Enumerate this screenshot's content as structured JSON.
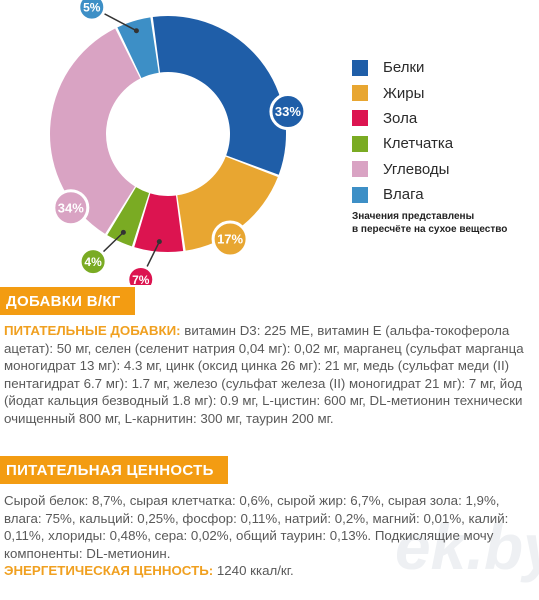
{
  "chart_data": {
    "type": "pie",
    "categories": [
      "Белки",
      "Жиры",
      "Зола",
      "Клетчатка",
      "Углеводы",
      "Влага"
    ],
    "values": [
      33,
      17,
      7,
      4,
      34,
      5
    ],
    "value_labels": [
      "33%",
      "17%",
      "7%",
      "4%",
      "34%",
      "5%"
    ],
    "colors": [
      "#1f5ea8",
      "#e8a631",
      "#dc1450",
      "#7aab23",
      "#d9a3c3",
      "#3d8fc6"
    ],
    "legend_position": "right"
  },
  "legend_note": {
    "line1": "Значения представлены",
    "line2": "в пересчёте на сухое вещество"
  },
  "watermark": "ek.by",
  "supplements": {
    "heading": "ДОБАВКИ В/КГ",
    "label": "ПИТАТЕЛЬНЫЕ ДОБАВКИ:",
    "text": " витамин D3: 225 ME, витамин Е (альфа-токоферола ацетат): 50 мг, селен (селенит натрия 0,04 мг): 0,02 мг, марганец (сульфат марганца моногидрат 13 мг): 4.3 мг, цинк (оксид цинка 26 мг): 21 мг, медь (сульфат меди (II) пентагидрат 6.7 мг): 1.7 мг, железо (сульфат железа (II) моногидрат 21 мг): 7 мг, йод (йодат кальция безводный 1.8 мг): 0.9 мг, L-цистин: 600 мг, DL-метионин технически очищенный 800 мг, L-карнитин: 300 мг, таурин 200 мг."
  },
  "nutrition": {
    "heading": "ПИТАТЕЛЬНАЯ ЦЕННОСТЬ",
    "text": "Сырой белок: 8,7%, сырая клетчатка: 0,6%, сырой жир: 6,7%, сырая зола: 1,9%, влага: 75%, кальций: 0,25%, фосфор: 0,11%, натрий: 0,2%, магний: 0,01%, калий: 0,11%, хлориды: 0,48%, сера: 0,02%, общий таурин: 0,13%. Подкислящие мочу компоненты: DL-метионин.",
    "energy_label": "ЭНЕРГЕТИЧЕСКАЯ ЦЕННОСТЬ:",
    "energy_value": " 1240 ккал/кг."
  }
}
